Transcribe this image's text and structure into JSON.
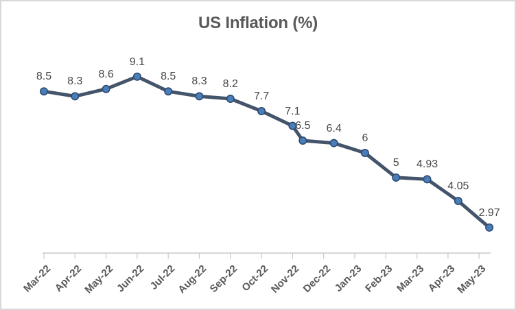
{
  "chart_data": {
    "type": "line",
    "title": "US Inflation (%)",
    "categories": [
      "Mar-22",
      "Apr-22",
      "May-22",
      "Jun-22",
      "Jul-22",
      "Aug-22",
      "Sep-22",
      "Oct-22",
      "Nov-22",
      "Dec-22",
      "Jan-23",
      "Feb-23",
      "Mar-23",
      "Apr-23",
      "May-23"
    ],
    "series": [
      {
        "name": "US Inflation",
        "points": [
          {
            "x_index": 0,
            "value": 8.5,
            "label": "8.5"
          },
          {
            "x_index": 1,
            "value": 8.3,
            "label": "8.3"
          },
          {
            "x_index": 2,
            "value": 8.6,
            "label": "8.6"
          },
          {
            "x_index": 3,
            "value": 9.1,
            "label": "9.1"
          },
          {
            "x_index": 4,
            "value": 8.5,
            "label": "8.5"
          },
          {
            "x_index": 5,
            "value": 8.3,
            "label": "8.3"
          },
          {
            "x_index": 6,
            "value": 8.2,
            "label": "8.2"
          },
          {
            "x_index": 7,
            "value": 7.7,
            "label": "7.7"
          },
          {
            "x_index": 8,
            "value": 7.1,
            "label": "7.1"
          },
          {
            "x_index": 8.33,
            "value": 6.5,
            "label": "6.5"
          },
          {
            "x_index": 9.33,
            "value": 6.4,
            "label": "6.4"
          },
          {
            "x_index": 10.33,
            "value": 6,
            "label": "6"
          },
          {
            "x_index": 11.33,
            "value": 5,
            "label": "5"
          },
          {
            "x_index": 12.33,
            "value": 4.93,
            "label": "4.93"
          },
          {
            "x_index": 13.33,
            "value": 4.05,
            "label": "4.05"
          },
          {
            "x_index": 14.33,
            "value": 2.97,
            "label": "2.97"
          }
        ]
      }
    ],
    "x_axis": {
      "tick_count": 15,
      "label_rotation_deg": -45
    },
    "y_axis": {
      "visible": false,
      "approx_min": 2,
      "approx_max": 9.6
    },
    "grid": false,
    "legend": false,
    "data_labels_position": "above",
    "colors": {
      "line": "#44546A",
      "marker_fill": "#4A7EBB",
      "marker_stroke": "#2F4A6E",
      "title_text": "#595959",
      "data_label_text": "#474747",
      "axis_label_text": "#595959",
      "axis_line": "#C8C8C8",
      "chart_border": "#D8D8D8",
      "background": "#FFFFFF"
    }
  }
}
